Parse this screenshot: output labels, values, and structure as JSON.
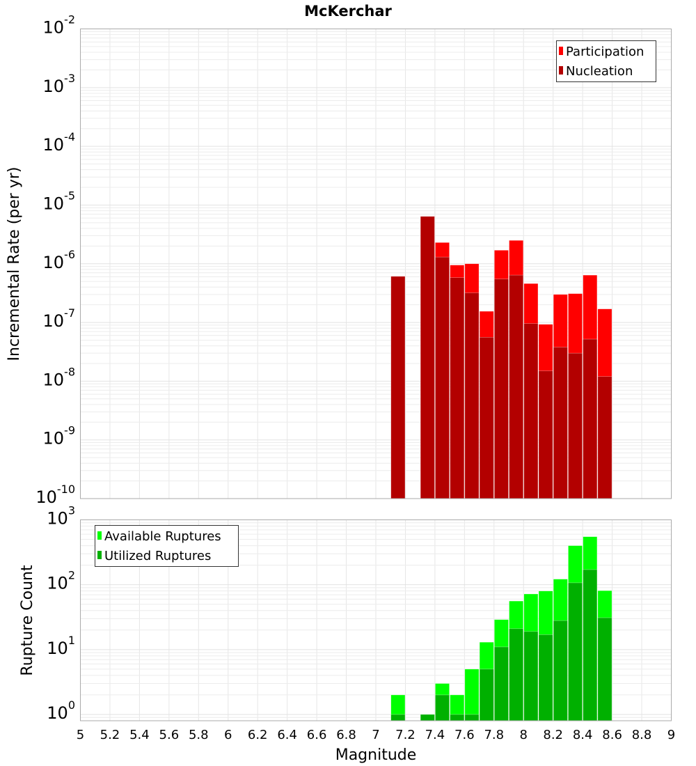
{
  "chart_data": [
    {
      "type": "bar",
      "title": "McKerchar",
      "xlabel": "Magnitude",
      "ylabel": "Incremental Rate (per yr)",
      "yscale": "log",
      "ylim": [
        1e-10,
        0.01
      ],
      "xlim": [
        5,
        9
      ],
      "grid": true,
      "legend_position": "top-right",
      "bin_width": 0.1,
      "x": [
        7.15,
        7.35,
        7.45,
        7.55,
        7.65,
        7.75,
        7.85,
        7.95,
        8.05,
        8.15,
        8.25,
        8.35,
        8.45,
        8.55
      ],
      "series": [
        {
          "name": "Participation",
          "color": "#ff0000",
          "values": [
            6.1e-07,
            6.4e-06,
            2.3e-06,
            9.5e-07,
            1e-06,
            1.55e-07,
            1.7e-06,
            2.5e-06,
            4.6e-07,
            9.3e-08,
            3e-07,
            3.1e-07,
            6.4e-07,
            1.7e-07
          ]
        },
        {
          "name": "Nucleation",
          "color": "#b30000",
          "values": [
            6.1e-07,
            6.4e-06,
            1.3e-06,
            5.8e-07,
            3.2e-07,
            5.6e-08,
            5.5e-07,
            6.4e-07,
            9.6e-08,
            1.5e-08,
            3.8e-08,
            3e-08,
            5.2e-08,
            1.2e-08
          ]
        }
      ],
      "y_ticks": [
        {
          "base": "10",
          "exp": "-2"
        },
        {
          "base": "10",
          "exp": "-3"
        },
        {
          "base": "10",
          "exp": "-4"
        },
        {
          "base": "10",
          "exp": "-5"
        },
        {
          "base": "10",
          "exp": "-6"
        },
        {
          "base": "10",
          "exp": "-7"
        },
        {
          "base": "10",
          "exp": "-8"
        },
        {
          "base": "10",
          "exp": "-9"
        },
        {
          "base": "10",
          "exp": "-10"
        }
      ]
    },
    {
      "type": "bar",
      "xlabel": "Magnitude",
      "ylabel": "Rupture Count",
      "yscale": "log",
      "ylim": [
        0.8,
        1000
      ],
      "xlim": [
        5,
        9
      ],
      "grid": true,
      "legend_position": "top-left",
      "bin_width": 0.1,
      "x": [
        7.15,
        7.35,
        7.45,
        7.55,
        7.65,
        7.75,
        7.85,
        7.95,
        8.05,
        8.15,
        8.25,
        8.35,
        8.45,
        8.55
      ],
      "series": [
        {
          "name": "Available Ruptures",
          "color": "#00ff00",
          "values": [
            2,
            1,
            3,
            2,
            5,
            13,
            29,
            56,
            72,
            80,
            122,
            400,
            550,
            81
          ]
        },
        {
          "name": "Utilized Ruptures",
          "color": "#00b000",
          "values": [
            1,
            1,
            2,
            1,
            1,
            5,
            11,
            21,
            19,
            17,
            28,
            107,
            171,
            31
          ]
        }
      ],
      "y_ticks": [
        {
          "base": "10",
          "exp": "3"
        },
        {
          "base": "10",
          "exp": "2"
        },
        {
          "base": "10",
          "exp": "1"
        },
        {
          "base": "10",
          "exp": "0"
        }
      ]
    }
  ],
  "x_ticks": [
    "5",
    "5.2",
    "5.4",
    "5.6",
    "5.8",
    "6",
    "6.2",
    "6.4",
    "6.6",
    "6.8",
    "7",
    "7.2",
    "7.4",
    "7.6",
    "7.8",
    "8",
    "8.2",
    "8.4",
    "8.6",
    "8.8",
    "9"
  ],
  "x_tick_values": [
    5,
    5.2,
    5.4,
    5.6,
    5.8,
    6,
    6.2,
    6.4,
    6.6,
    6.8,
    7,
    7.2,
    7.4,
    7.6,
    7.8,
    8,
    8.2,
    8.4,
    8.6,
    8.8,
    9
  ]
}
